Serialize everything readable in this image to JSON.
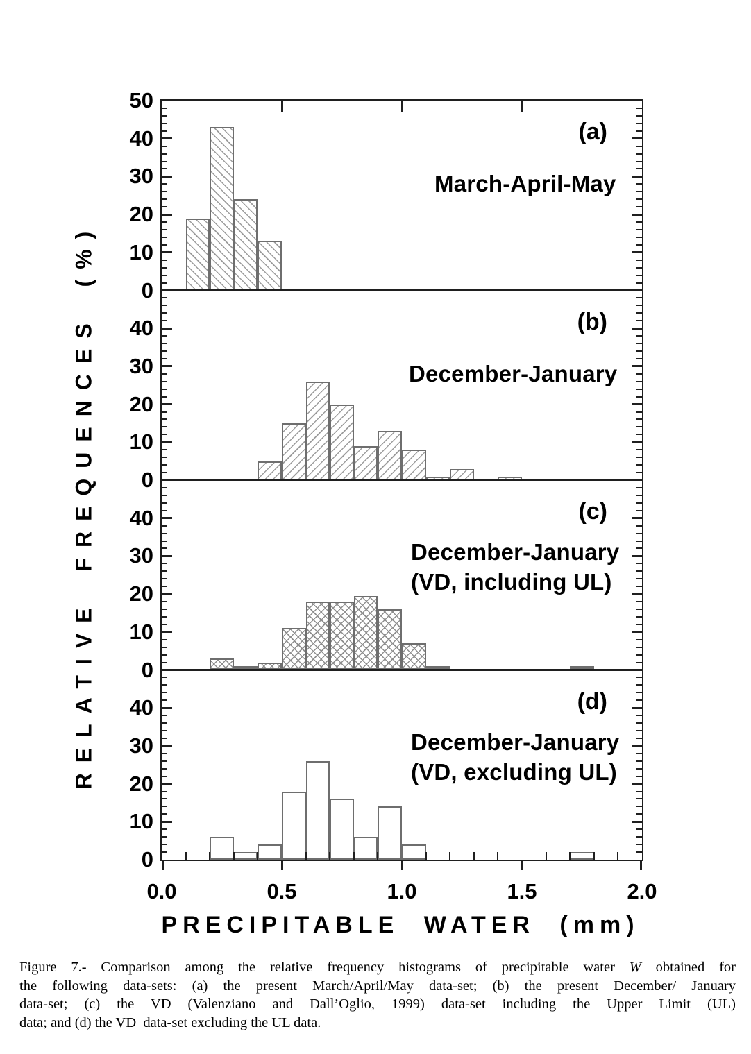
{
  "figure": {
    "ylabel": "RELATIVE FREQUENCES (%)",
    "xlabel": "PRECIPITABLE WATER (mm)",
    "xlim": [
      0,
      2
    ],
    "x_tick_values": [
      0,
      0.5,
      1,
      1.5,
      2
    ],
    "x_tick_labels": [
      "0.0",
      "0.5",
      "1.0",
      "1.5",
      "2.0"
    ],
    "x_minor_tick_step": 0.1,
    "y_minor_tick_step": 2,
    "colors": {
      "background": "#ffffff",
      "frame": "#1f1f1f",
      "bar_outline": "#6e6e6e",
      "hatch": "#9d9d9d",
      "text": "#000000"
    }
  },
  "chart_data": [
    {
      "type": "bar",
      "panel_label": "(a)",
      "annotation": [
        "March-April-May"
      ],
      "hatch": "\\",
      "bin_width": 0.1,
      "xlim": [
        0,
        2
      ],
      "ylim": [
        0,
        50
      ],
      "ytick_values": [
        50,
        40,
        30,
        20,
        10,
        0
      ],
      "ytick_labels": [
        "50",
        "40",
        "30",
        "20",
        "10",
        "0"
      ],
      "bars": [
        {
          "x0": 0.1,
          "x1": 0.2,
          "v": 19
        },
        {
          "x0": 0.2,
          "x1": 0.3,
          "v": 43
        },
        {
          "x0": 0.3,
          "x1": 0.4,
          "v": 24
        },
        {
          "x0": 0.4,
          "x1": 0.5,
          "v": 13
        }
      ]
    },
    {
      "type": "bar",
      "panel_label": "(b)",
      "annotation": [
        "December-January"
      ],
      "hatch": "/",
      "bin_width": 0.1,
      "xlim": [
        0,
        2
      ],
      "ylim": [
        0,
        50
      ],
      "ytick_values": [
        40,
        30,
        20,
        10,
        0
      ],
      "ytick_labels": [
        "40",
        "30",
        "20",
        "10",
        "0"
      ],
      "bars": [
        {
          "x0": 0.4,
          "x1": 0.5,
          "v": 5
        },
        {
          "x0": 0.5,
          "x1": 0.6,
          "v": 15
        },
        {
          "x0": 0.6,
          "x1": 0.7,
          "v": 26
        },
        {
          "x0": 0.7,
          "x1": 0.8,
          "v": 20
        },
        {
          "x0": 0.8,
          "x1": 0.9,
          "v": 9
        },
        {
          "x0": 0.9,
          "x1": 1.0,
          "v": 13
        },
        {
          "x0": 1.0,
          "x1": 1.1,
          "v": 8
        },
        {
          "x0": 1.1,
          "x1": 1.2,
          "v": 1
        },
        {
          "x0": 1.2,
          "x1": 1.3,
          "v": 3
        },
        {
          "x0": 1.4,
          "x1": 1.5,
          "v": 1
        }
      ]
    },
    {
      "type": "bar",
      "panel_label": "(c)",
      "annotation": [
        "December-January",
        "(VD, including UL)"
      ],
      "hatch": "x",
      "bin_width": 0.1,
      "xlim": [
        0,
        2
      ],
      "ylim": [
        0,
        50
      ],
      "ytick_values": [
        40,
        30,
        20,
        10,
        0
      ],
      "ytick_labels": [
        "40",
        "30",
        "20",
        "10",
        "0"
      ],
      "bars": [
        {
          "x0": 0.2,
          "x1": 0.3,
          "v": 3
        },
        {
          "x0": 0.3,
          "x1": 0.4,
          "v": 1
        },
        {
          "x0": 0.4,
          "x1": 0.5,
          "v": 2
        },
        {
          "x0": 0.5,
          "x1": 0.6,
          "v": 11
        },
        {
          "x0": 0.6,
          "x1": 0.7,
          "v": 18
        },
        {
          "x0": 0.7,
          "x1": 0.8,
          "v": 18
        },
        {
          "x0": 0.8,
          "x1": 0.9,
          "v": 19.5
        },
        {
          "x0": 0.9,
          "x1": 1.0,
          "v": 16
        },
        {
          "x0": 1.0,
          "x1": 1.1,
          "v": 7
        },
        {
          "x0": 1.1,
          "x1": 1.2,
          "v": 1
        },
        {
          "x0": 1.7,
          "x1": 1.8,
          "v": 1
        }
      ]
    },
    {
      "type": "bar",
      "panel_label": "(d)",
      "annotation": [
        "December-January",
        "(VD, excluding UL)"
      ],
      "hatch": "none",
      "bin_width": 0.1,
      "xlim": [
        0,
        2
      ],
      "ylim": [
        0,
        50
      ],
      "ytick_values": [
        40,
        30,
        20,
        10,
        0
      ],
      "ytick_labels": [
        "40",
        "30",
        "20",
        "10",
        "0"
      ],
      "bars": [
        {
          "x0": 0.2,
          "x1": 0.3,
          "v": 6
        },
        {
          "x0": 0.3,
          "x1": 0.4,
          "v": 2
        },
        {
          "x0": 0.4,
          "x1": 0.5,
          "v": 4
        },
        {
          "x0": 0.5,
          "x1": 0.6,
          "v": 18
        },
        {
          "x0": 0.6,
          "x1": 0.7,
          "v": 26
        },
        {
          "x0": 0.7,
          "x1": 0.8,
          "v": 16
        },
        {
          "x0": 0.8,
          "x1": 0.9,
          "v": 6
        },
        {
          "x0": 0.9,
          "x1": 1.0,
          "v": 14
        },
        {
          "x0": 1.0,
          "x1": 1.1,
          "v": 4
        },
        {
          "x0": 1.7,
          "x1": 1.8,
          "v": 2
        }
      ]
    }
  ],
  "caption": {
    "lines": [
      [
        {
          "t": "Figure 7.- Comparison among the relative frequency histograms of precipitable water "
        },
        {
          "t": "W",
          "i": true
        },
        {
          "t": " obtained for"
        }
      ],
      [
        {
          "t": "the following data-sets: (a) the present March/April/May data-set; (b) the present December/ January"
        }
      ],
      [
        {
          "t": "data-set; (c) the VD (Valenziano and Dall’Oglio, 1999) data-set including the Upper Limit (UL)"
        }
      ],
      [
        {
          "t": "data; and (d) the VD  data-set excluding the UL data."
        }
      ]
    ]
  }
}
